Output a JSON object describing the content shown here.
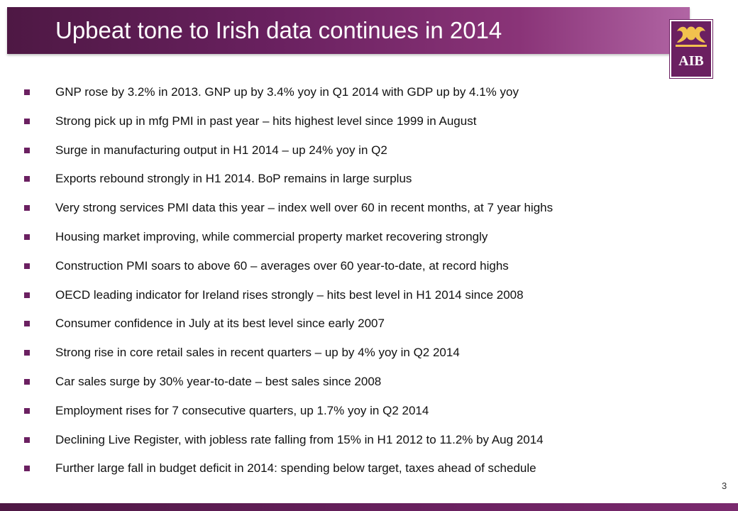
{
  "slide": {
    "title": "Upbeat tone to Irish data continues in 2014",
    "page_number": "3"
  },
  "logo": {
    "text": "AIB",
    "color": "#6b2061"
  },
  "colors": {
    "accent": "#6b2061",
    "title_text": "#ffffff"
  },
  "bullets": [
    "GNP rose by 3.2% in 2013.  GNP up by 3.4% yoy in Q1 2014 with GDP up by 4.1% yoy",
    "Strong pick up in mfg PMI in past year – hits highest level since 1999 in August",
    "Surge in manufacturing output in H1 2014 – up 24% yoy in Q2",
    "Exports rebound strongly in H1 2014. BoP remains in large surplus",
    "Very strong services PMI data this year – index well over 60 in recent months, at 7 year highs",
    "Housing market improving, while commercial property market recovering strongly",
    "Construction PMI soars to above 60 – averages over 60 year-to-date, at record highs",
    "OECD leading indicator for Ireland rises strongly – hits best level in H1 2014 since 2008",
    "Consumer confidence in July at its best level since early 2007",
    "Strong rise in core retail sales in recent quarters – up by 4% yoy in Q2 2014",
    "Car sales surge by 30% year-to-date – best sales since 2008",
    "Employment rises for 7 consecutive quarters, up 1.7% yoy in Q2 2014",
    "Declining Live Register, with jobless rate falling from 15% in H1 2012 to 11.2% by Aug 2014",
    "Further large fall in budget deficit in 2014: spending below target, taxes ahead of schedule"
  ]
}
